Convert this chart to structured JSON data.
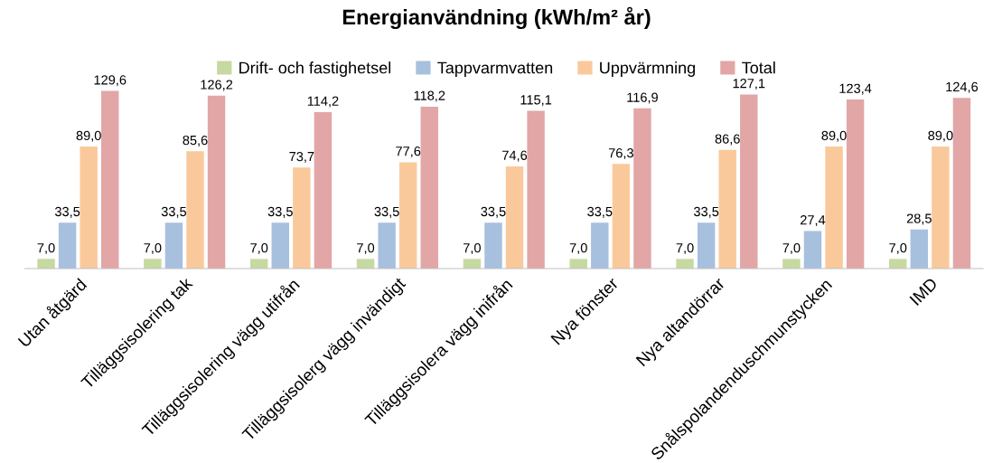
{
  "chart_data": {
    "type": "bar",
    "title": "Energianvändning (kWh/m² år)",
    "categories": [
      "Utan åtgärd",
      "Tilläggsisolering tak",
      "Tilläggsisolering vägg utifrån",
      "Tilläggsisolerg vägg invändigt",
      "Tilläggsisolera vägg inifrån",
      "Nya fönster",
      "Nya altandörrar",
      "Snålspolandenduschmunstycken",
      "IMD"
    ],
    "series": [
      {
        "name": "Drift- och fastighetsel",
        "color": "#c6d9a0",
        "values": [
          7.0,
          7.0,
          7.0,
          7.0,
          7.0,
          7.0,
          7.0,
          7.0,
          7.0
        ],
        "value_labels": [
          "7,0",
          "7,0",
          "7,0",
          "7,0",
          "7,0",
          "7,0",
          "7,0",
          "7,0",
          "7,0"
        ]
      },
      {
        "name": "Tappvarmvatten",
        "color": "#a7c0de",
        "values": [
          33.5,
          33.5,
          33.5,
          33.5,
          33.5,
          33.5,
          33.5,
          27.4,
          28.5
        ],
        "value_labels": [
          "33,5",
          "33,5",
          "33,5",
          "33,5",
          "33,5",
          "33,5",
          "33,5",
          "27,4",
          "28,5"
        ]
      },
      {
        "name": "Uppvärmning",
        "color": "#fac99b",
        "values": [
          89.0,
          85.6,
          73.7,
          77.6,
          74.6,
          76.3,
          86.6,
          89.0,
          89.0
        ],
        "value_labels": [
          "89,0",
          "85,6",
          "73,7",
          "77,6",
          "74,6",
          "76,3",
          "86,6",
          "89,0",
          "89,0"
        ]
      },
      {
        "name": "Total",
        "color": "#e2a6a6",
        "values": [
          129.6,
          126.2,
          114.2,
          118.2,
          115.1,
          116.9,
          127.1,
          123.4,
          124.6
        ],
        "value_labels": [
          "129,6",
          "126,2",
          "114,2",
          "118,2",
          "115,1",
          "116,9",
          "127,1",
          "123,4",
          "124,6"
        ]
      }
    ],
    "legend": "top"
  }
}
